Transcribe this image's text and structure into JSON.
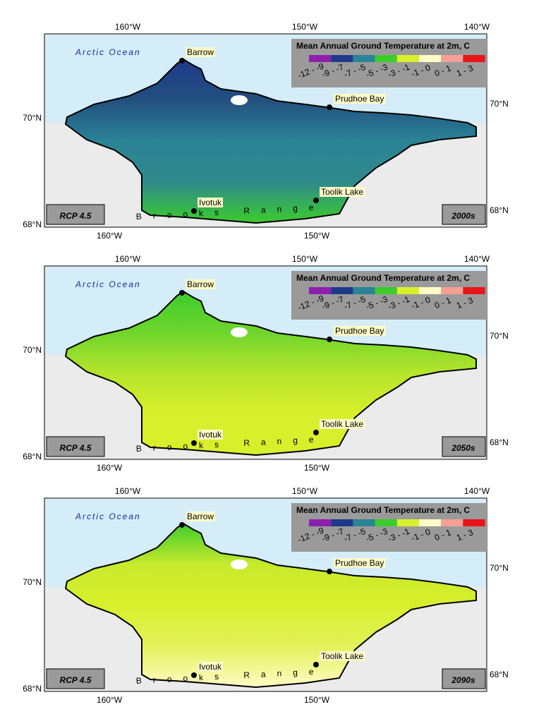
{
  "graticule": {
    "top": [
      "160°W",
      "150°W",
      "140°W"
    ],
    "bottom": [
      "160°W",
      "150°W"
    ],
    "left": [
      "70°N",
      "68°N"
    ],
    "right": [
      "70°N",
      "68°N"
    ]
  },
  "ocean_label": "Arctic Ocean",
  "places": [
    "Barrow",
    "Prudhoe Bay",
    "Ivotuk",
    "Toolik Lake"
  ],
  "range_label": "Brooks Range",
  "legend": {
    "title": "Mean Annual Ground Temperature at 2m, C",
    "classes": [
      {
        "label": "-12 - -9",
        "color": "#8e1fae"
      },
      {
        "label": "-9 - -7",
        "color": "#1f3a8a"
      },
      {
        "label": "-7 - -5",
        "color": "#2b8396"
      },
      {
        "label": "-5 - -3",
        "color": "#3ccc2c"
      },
      {
        "label": "-3 - -1",
        "color": "#d8ef2c"
      },
      {
        "label": "-1 - 0",
        "color": "#fffcc4"
      },
      {
        "label": "0 - 1",
        "color": "#f5a096"
      },
      {
        "label": "1 - 3",
        "color": "#e8141a"
      }
    ]
  },
  "panels": [
    {
      "scenario": "RCP 4.5",
      "period": "2000s",
      "zones": [
        "#1f3a8a",
        "#22507f",
        "#2b8396",
        "#2f8a8c",
        "#3ccc2c"
      ]
    },
    {
      "scenario": "RCP 4.5",
      "period": "2050s",
      "zones": [
        "#3ccc2c",
        "#6fd52c",
        "#b6e52c",
        "#d8ef2c",
        "#d8ef2c"
      ]
    },
    {
      "scenario": "RCP 4.5",
      "period": "2090s",
      "zones": [
        "#3ccc2c",
        "#c8ea2c",
        "#d8ef2c",
        "#e3f25a",
        "#fffcc4"
      ]
    }
  ]
}
